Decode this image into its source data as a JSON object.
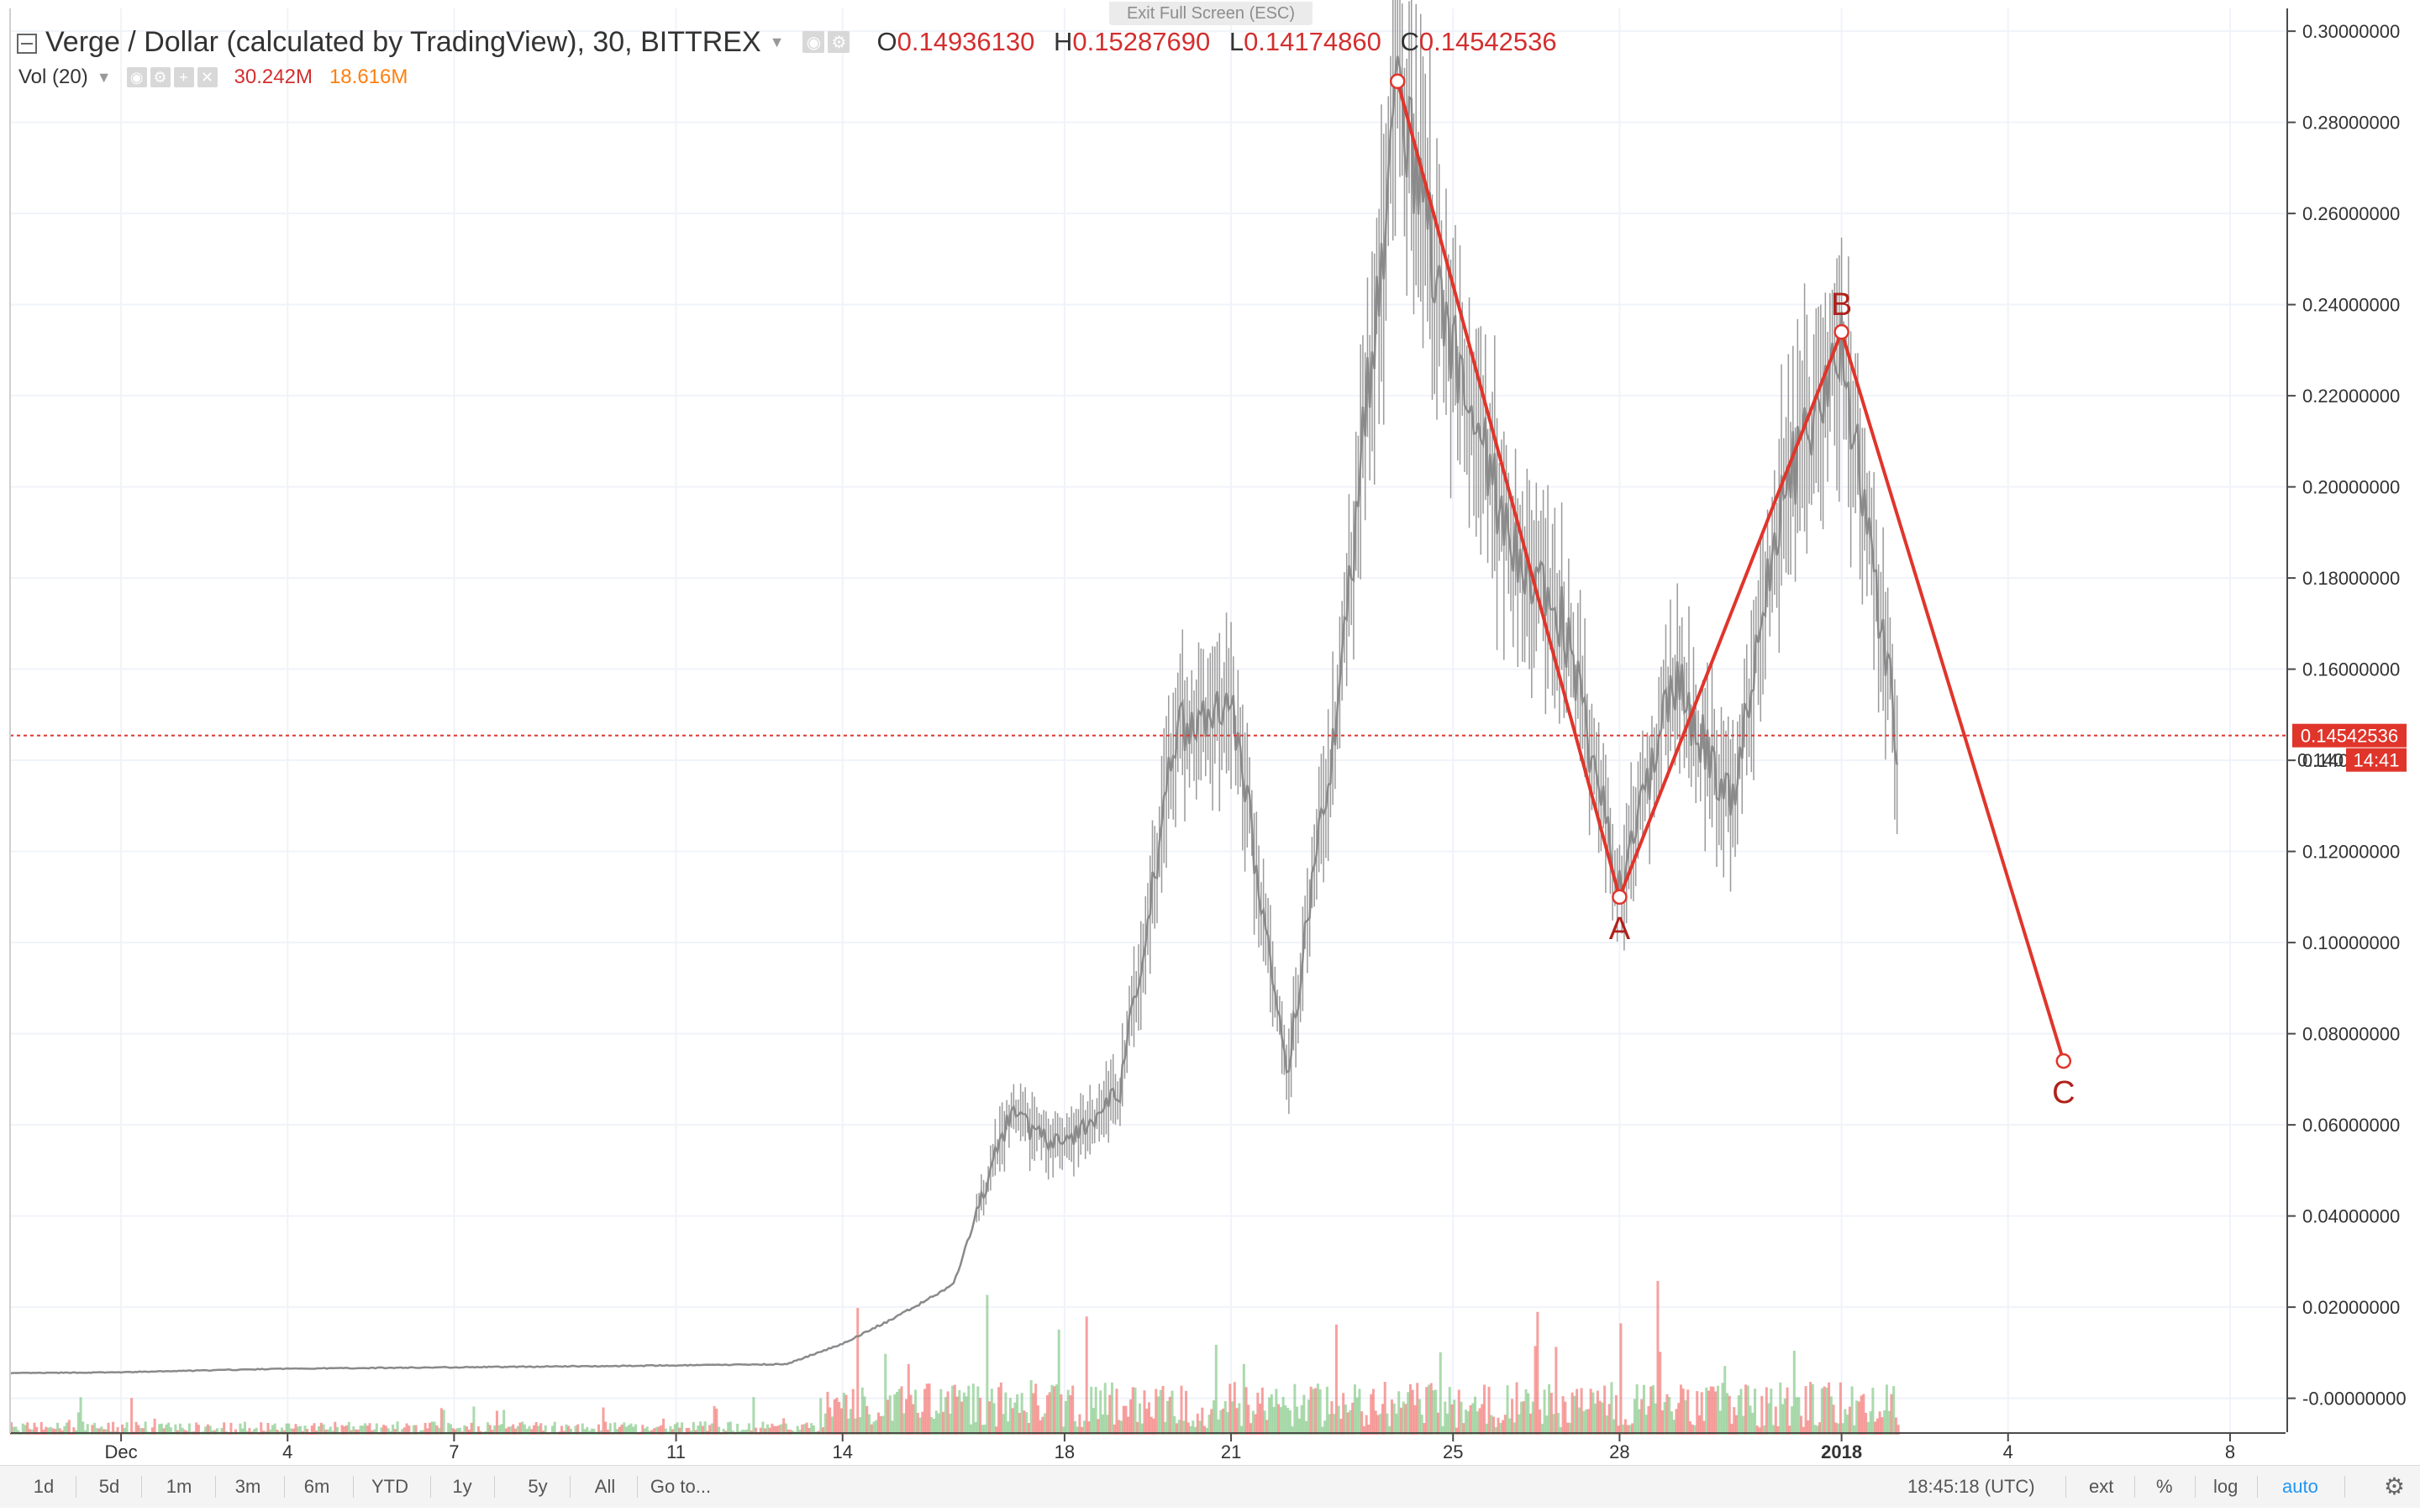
{
  "exit_fullscreen": "Exit Full Screen (ESC)",
  "legend": {
    "symbol": "Verge / Dollar (calculated by TradingView), 30, BITTREX",
    "open_key": "O",
    "open": "0.14936130",
    "high_key": "H",
    "high": "0.15287690",
    "low_key": "L",
    "low": "0.14174860",
    "close_key": "C",
    "close": "0.14542536"
  },
  "volume": {
    "label": "Vol (20)",
    "value1": "30.242M",
    "value2": "18.616M"
  },
  "chart_data": {
    "type": "line",
    "series": [
      {
        "name": "Verge / Dollar",
        "x": [
          "2017-11-29",
          "2017-12-01",
          "2017-12-04",
          "2017-12-07",
          "2017-12-11",
          "2017-12-13",
          "2017-12-14",
          "2017-12-15",
          "2017-12-16",
          "2017-12-17",
          "2017-12-18",
          "2017-12-19",
          "2017-12-20",
          "2017-12-21",
          "2017-12-22",
          "2017-12-23",
          "2017-12-24",
          "2017-12-25",
          "2017-12-26",
          "2017-12-27",
          "2017-12-28",
          "2017-12-29",
          "2017-12-30",
          "2017-12-31",
          "2018-01-01",
          "2018-01-02"
        ],
        "values": [
          0.0055,
          0.0057,
          0.0065,
          0.0068,
          0.0072,
          0.0075,
          0.012,
          0.018,
          0.025,
          0.062,
          0.055,
          0.068,
          0.145,
          0.155,
          0.07,
          0.16,
          0.289,
          0.23,
          0.19,
          0.17,
          0.112,
          0.158,
          0.13,
          0.2,
          0.23,
          0.145
        ]
      },
      {
        "name": "ABC",
        "x": [
          "2017-12-24",
          "2017-12-28",
          "2018-01-01",
          "2018-01-05"
        ],
        "values": [
          0.289,
          0.11,
          0.234,
          0.074
        ],
        "point_labels": [
          "",
          "A",
          "B",
          "C"
        ]
      }
    ],
    "ylim": [
      -0.008,
      0.305
    ],
    "y_ticks": [
      "0.30000000",
      "0.28000000",
      "0.26000000",
      "0.24000000",
      "0.22000000",
      "0.20000000",
      "0.18000000",
      "0.16000000",
      "0.14000000",
      "0.12000000",
      "0.10000000",
      "0.08000000",
      "0.06000000",
      "0.04000000",
      "0.02000000",
      "-0.00000000"
    ],
    "x_ticks": [
      "Dec",
      "4",
      "7",
      "11",
      "14",
      "18",
      "21",
      "25",
      "28",
      "2018",
      "4",
      "8"
    ],
    "current_price": 0.14542536,
    "current_price_label": "0.14542536",
    "countdown_label": "14:41",
    "y_ghost_label": "0.140",
    "grid": true,
    "colors": {
      "line": "#8a8a8a",
      "pattern": "#e0352b",
      "up": "#66bb6a",
      "down": "#ef5350"
    }
  },
  "bottom": {
    "ranges": [
      "1d",
      "5d",
      "1m",
      "3m",
      "6m",
      "YTD",
      "1y",
      "5y",
      "All"
    ],
    "goto": "Go to...",
    "time": "18:45:18 (UTC)",
    "ext": "ext",
    "pct": "%",
    "log": "log",
    "auto": "auto",
    "settings_icon": "gear-icon"
  }
}
